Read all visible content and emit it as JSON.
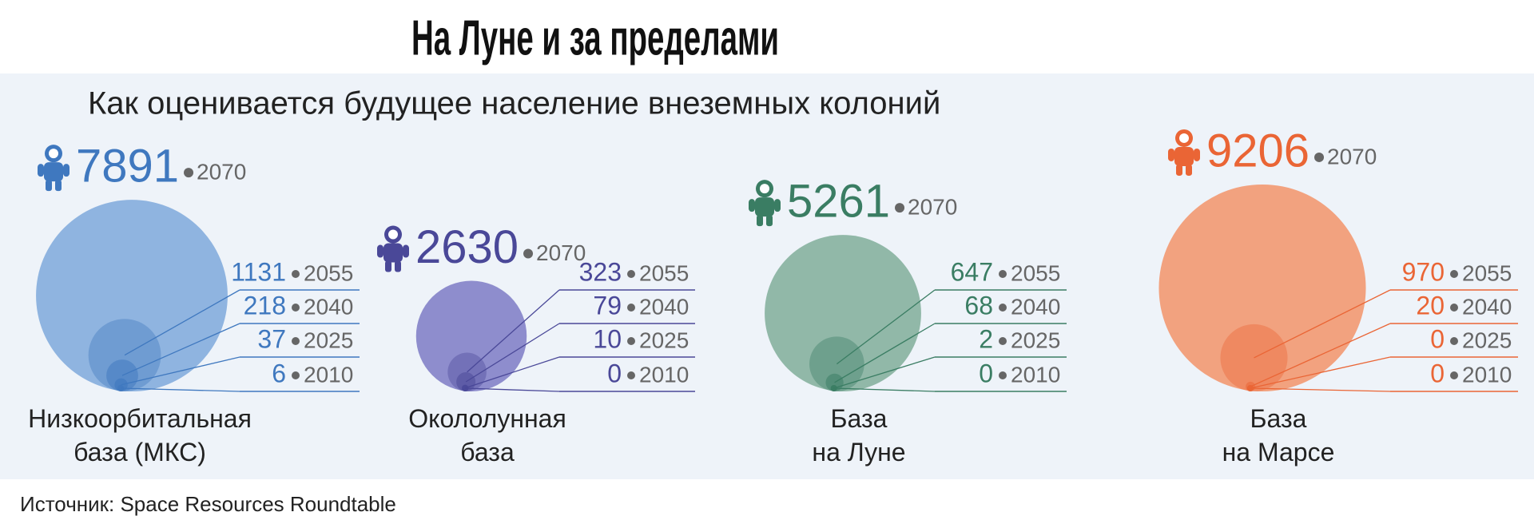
{
  "chart_data": {
    "type": "bubble",
    "title": "На Луне и за пределами",
    "subtitle": "Как оценивается будущее население внеземных колоний",
    "source": "Источник: Space Resources Roundtable",
    "categories": [
      "2010",
      "2025",
      "2040",
      "2055",
      "2070"
    ],
    "series": [
      {
        "name": "Низкоорбитальная\nбаза (МКС)",
        "color": "#3f78bf",
        "fill": "#8fb4e0",
        "values": [
          6,
          37,
          218,
          1131,
          7891
        ]
      },
      {
        "name": "Окололунная\nбаза",
        "color": "#4a4898",
        "fill": "#8e8dcd",
        "values": [
          0,
          10,
          79,
          323,
          2630
        ]
      },
      {
        "name": "База\nна Луне",
        "color": "#3a7d63",
        "fill": "#91b8a8",
        "values": [
          0,
          2,
          68,
          647,
          5261
        ]
      },
      {
        "name": "База\nна Марсе",
        "color": "#ea6535",
        "fill": "#f2a27f",
        "values": [
          0,
          0,
          20,
          970,
          9206
        ]
      }
    ]
  }
}
